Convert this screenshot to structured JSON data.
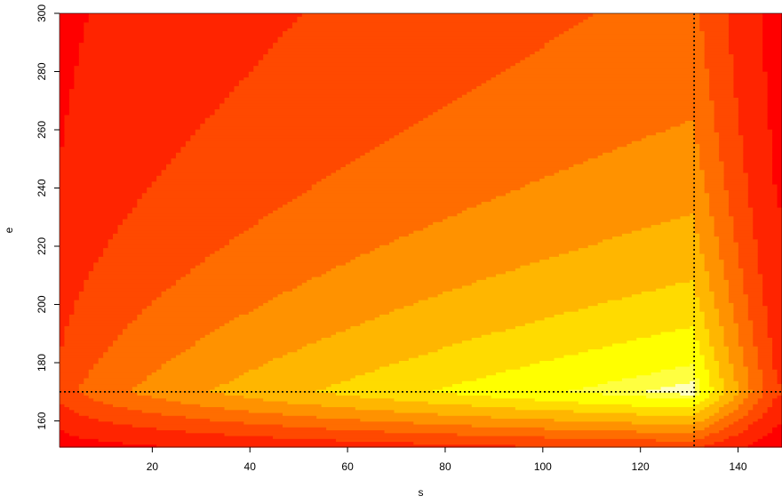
{
  "chart_data": {
    "type": "heatmap",
    "title": "",
    "xlabel": "s",
    "ylabel": "e",
    "xlim": [
      1,
      149
    ],
    "ylim": [
      151,
      300
    ],
    "x_ticks": [
      20,
      40,
      60,
      80,
      100,
      120,
      140
    ],
    "y_ticks": [
      160,
      180,
      200,
      220,
      240,
      260,
      280,
      300
    ],
    "optimum": {
      "s": 131,
      "e": 170
    },
    "color_levels": [
      "#ff0000",
      "#ff2400",
      "#ff4900",
      "#ff6d00",
      "#ff9200",
      "#ffb600",
      "#ffdb00",
      "#ffff00",
      "#ffff40",
      "#ffffbf"
    ],
    "level_description": "level index 0 = lowest value (red) to 9 = highest value (pale yellow); surface peaks at the optimum and falls off toward the edges",
    "reference_lines": [
      {
        "orientation": "vertical",
        "s": 131,
        "style": "dotted",
        "color": "#000000"
      },
      {
        "orientation": "horizontal",
        "e": 170,
        "style": "dotted",
        "color": "#000000"
      }
    ]
  }
}
